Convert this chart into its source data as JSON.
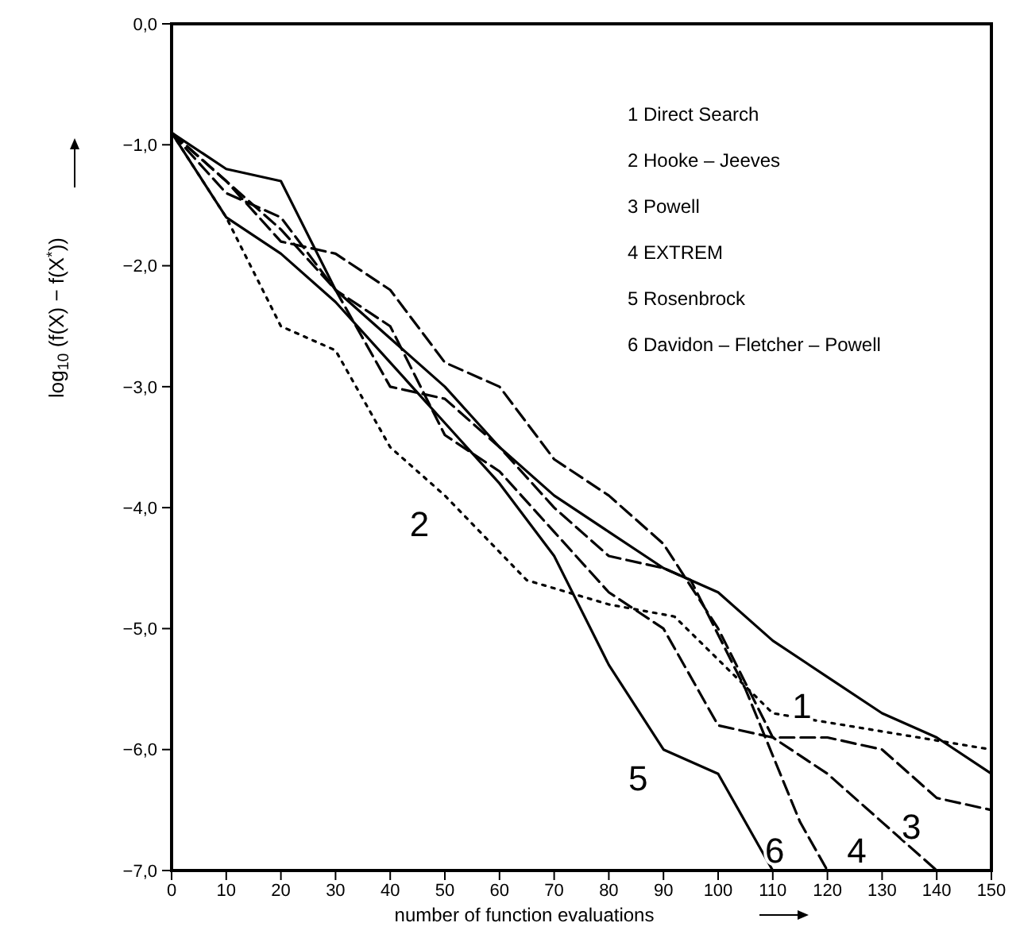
{
  "chart_data": {
    "type": "line",
    "xlabel": "number of function evaluations",
    "ylabel": "log$_{10}$ (f(X) − f(X$^{*}$))",
    "xlim": [
      0,
      150
    ],
    "ylim": [
      -7,
      0
    ],
    "xticks": [
      0,
      10,
      20,
      30,
      40,
      50,
      60,
      70,
      80,
      90,
      100,
      110,
      120,
      130,
      140,
      150
    ],
    "yticks": [
      {
        "value": 0,
        "label": "0,0"
      },
      {
        "value": -1,
        "label": "−1,0"
      },
      {
        "value": -2,
        "label": "−2,0"
      },
      {
        "value": -3,
        "label": "−3,0"
      },
      {
        "value": -4,
        "label": "−4,0"
      },
      {
        "value": -5,
        "label": "−5,0"
      },
      {
        "value": -6,
        "label": "−6,0"
      },
      {
        "value": -7,
        "label": "−7,0"
      }
    ],
    "grid": false,
    "marker": "none",
    "series": [
      {
        "color": "#000000",
        "line_style": "solid",
        "x": [
          0,
          10,
          20,
          30,
          40,
          50,
          60,
          70,
          80,
          90,
          100,
          110,
          120,
          130,
          140,
          150
        ],
        "values": [
          -0.9,
          -1.2,
          -1.3,
          -2.2,
          -2.6,
          -3.0,
          -3.5,
          -3.9,
          -4.2,
          -4.5,
          -4.7,
          -5.1,
          -5.4,
          -5.7,
          -5.9,
          -6.2
        ]
      },
      {
        "color": "#000000",
        "line_style": "dotted",
        "x": [
          0,
          10,
          20,
          30,
          40,
          50,
          65,
          80,
          92,
          110,
          130,
          150
        ],
        "values": [
          -0.9,
          -1.6,
          -2.5,
          -2.7,
          -3.5,
          -3.9,
          -4.6,
          -4.8,
          -4.9,
          -5.7,
          -5.85,
          -6.0
        ]
      },
      {
        "color": "#000000",
        "line_style": "dashed",
        "x": [
          0,
          10,
          20,
          30,
          40,
          50,
          60,
          70,
          80,
          90,
          100,
          110,
          120,
          130,
          140,
          150
        ],
        "values": [
          -0.9,
          -1.4,
          -1.6,
          -2.2,
          -2.5,
          -3.4,
          -3.7,
          -4.2,
          -4.7,
          -5.0,
          -5.8,
          -5.9,
          -5.9,
          -6.0,
          -6.4,
          -6.5
        ]
      },
      {
        "color": "#000000",
        "line_style": "dashed",
        "x": [
          0,
          10,
          20,
          30,
          40,
          50,
          60,
          70,
          80,
          90,
          100,
          110,
          120,
          130,
          140
        ],
        "values": [
          -0.9,
          -1.3,
          -1.8,
          -1.9,
          -2.2,
          -2.8,
          -3.0,
          -3.6,
          -3.9,
          -4.3,
          -5.0,
          -5.9,
          -6.2,
          -6.6,
          -7.0
        ]
      },
      {
        "color": "#000000",
        "line_style": "solid",
        "x": [
          0,
          10,
          20,
          30,
          40,
          50,
          60,
          70,
          80,
          90,
          100,
          110
        ],
        "values": [
          -0.9,
          -1.6,
          -1.9,
          -2.3,
          -2.8,
          -3.3,
          -3.8,
          -4.4,
          -5.3,
          -6.0,
          -6.2,
          -7.0
        ]
      },
      {
        "color": "#000000",
        "line_style": "dashed",
        "x": [
          0,
          10,
          20,
          30,
          40,
          50,
          60,
          70,
          80,
          90,
          95,
          105,
          115,
          120
        ],
        "values": [
          -0.9,
          -1.3,
          -1.7,
          -2.2,
          -3.0,
          -3.1,
          -3.5,
          -4.0,
          -4.4,
          -4.5,
          -4.6,
          -5.5,
          -6.6,
          -7.0
        ]
      }
    ],
    "annotations": [
      "1 Direct  Search",
      "2 Hooke – Jeeves",
      "3 Powell",
      "4 EXTREM",
      "5 Rosenbrock",
      "6 Davidon – Fletcher – Powell",
      {
        "text": "1",
        "x": 120,
        "y": -5.4
      },
      {
        "text": "2",
        "x": 50,
        "y": -3.9
      },
      {
        "text": "3",
        "x": 140,
        "y": -6.4
      },
      {
        "text": "4",
        "x": 130,
        "y": -6.6
      },
      {
        "text": "5",
        "x": 90,
        "y": -6.0
      },
      {
        "text": "6",
        "x": 115,
        "y": -6.6
      }
    ]
  }
}
